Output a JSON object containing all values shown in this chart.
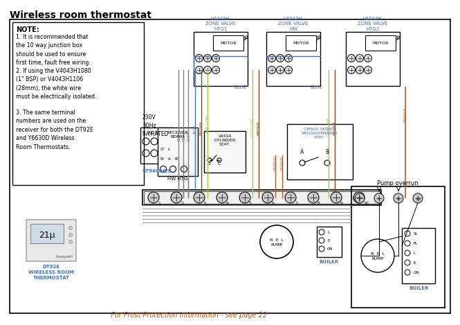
{
  "title": "Wireless room thermostat",
  "bg_color": "#ffffff",
  "note_text": "NOTE:",
  "note1": "1. It is recommended that\nthe 10 way junction box\nshould be used to ensure\nfirst time, fault free wiring.",
  "note2": "2. If using the V4043H1080\n(1\" BSP) or V4043H1106\n(28mm), the white wire\nmust be electrically isolated.",
  "note3": "3. The same terminal\nnumbers are used on the\nreceiver for both the DT92E\nand Y6630D Wireless\nRoom Thermostats.",
  "footer": "For Frost Protection information - see page 22",
  "valve1_label": "V4043H\nZONE VALVE\nHTG1",
  "valve2_label": "V4043H\nZONE VALVE\nHW",
  "valve3_label": "V4043H\nZONE VALVE\nHTG2",
  "pump_overrun_label": "Pump overrun",
  "dt92e_label": "DT92E\nWIRELESS ROOM\nTHERMOSTAT",
  "st9400_label": "ST9400A/C",
  "hwhtg_label": "HW HTG",
  "boiler_label": "BOILER",
  "boiler2_label": "BOILER",
  "pump_label": "N  E  L\nPUMP",
  "pump2_label": "N  E  L\nPUMP",
  "cm900_label": "CM900 SERIES\nPROGRAMMABLE\nSTAT.",
  "l641a_label": "L641A\nCYLINDER\nSTAT.",
  "receiver_label": "RECEIVER\nBDR91",
  "power_label": "230V\n50Hz\n3A RATED",
  "blue_color": "#4472c4",
  "orange_color": "#c0571b",
  "gray_color": "#808080",
  "black_color": "#000000",
  "gyellow_color": "#9acd32",
  "brown_color": "#8b4513"
}
